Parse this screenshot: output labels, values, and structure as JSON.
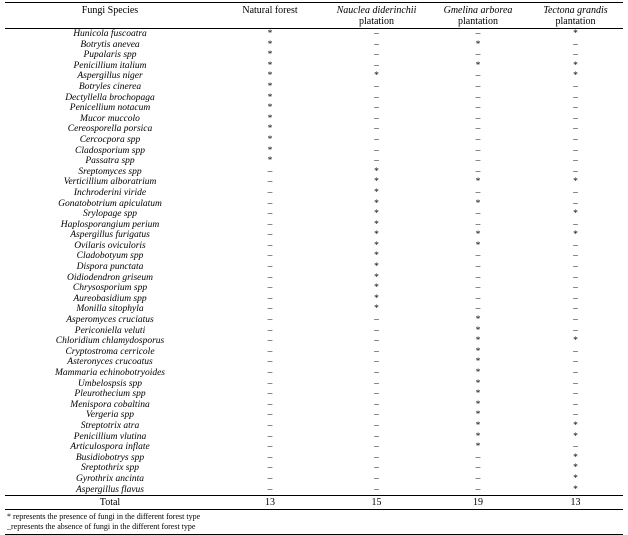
{
  "table": {
    "columns": [
      {
        "key": "fungi-species",
        "label": "Fungi Species",
        "italic": false,
        "sub": ""
      },
      {
        "key": "natural-forest",
        "label": "Natural forest",
        "italic": false,
        "sub": ""
      },
      {
        "key": "nauclea",
        "label": "Nauclea diderinchii",
        "italic": true,
        "sub": "platation"
      },
      {
        "key": "gmelina",
        "label": "Gmelina arborea",
        "italic": true,
        "sub": "plantation"
      },
      {
        "key": "tectona",
        "label": "Tectona grandis",
        "italic": true,
        "sub": "plantation"
      }
    ],
    "presence_symbol": "*",
    "absence_symbol": "–",
    "rows": [
      {
        "species": "Hunicola fuscoatra",
        "values": [
          "*",
          "–",
          "–",
          "*"
        ]
      },
      {
        "species": "Botrytis anevea",
        "values": [
          "*",
          "–",
          "*",
          "–"
        ]
      },
      {
        "species": "Pupalaris spp",
        "values": [
          "*",
          "–",
          "–",
          "–"
        ]
      },
      {
        "species": "Penicillium italium",
        "values": [
          "*",
          "–",
          "*",
          "*"
        ]
      },
      {
        "species": "Aspergillus niger",
        "values": [
          "*",
          "*",
          "–",
          "*"
        ]
      },
      {
        "species": "Botryles cinerea",
        "values": [
          "*",
          "–",
          "–",
          "–"
        ]
      },
      {
        "species": "Dectyllella brochopaga",
        "values": [
          "*",
          "–",
          "–",
          "–"
        ]
      },
      {
        "species": "Penicellium notacum",
        "values": [
          "*",
          "–",
          "–",
          "–"
        ]
      },
      {
        "species": "Mucor muccolo",
        "values": [
          "*",
          "–",
          "–",
          "–"
        ]
      },
      {
        "species": "Cereosporella porsica",
        "values": [
          "*",
          "–",
          "–",
          "–"
        ]
      },
      {
        "species": "Cercocpora spp",
        "values": [
          "*",
          "–",
          "–",
          "–"
        ]
      },
      {
        "species": "Cladosporium spp",
        "values": [
          "*",
          "–",
          "–",
          "–"
        ]
      },
      {
        "species": "Passatra spp",
        "values": [
          "*",
          "–",
          "–",
          "–"
        ]
      },
      {
        "species": "Sreptomyces spp",
        "values": [
          "–",
          "*",
          "–",
          "–"
        ]
      },
      {
        "species": "Verticillium alboratrium",
        "values": [
          "–",
          "*",
          "*",
          "*"
        ]
      },
      {
        "species": "Inchroderini viride",
        "values": [
          "–",
          "*",
          "–",
          "–"
        ]
      },
      {
        "species": "Gonatobotrium apiculatum",
        "values": [
          "–",
          "*",
          "*",
          "–"
        ]
      },
      {
        "species": "Srylopage spp",
        "values": [
          "–",
          "*",
          "–",
          "*"
        ]
      },
      {
        "species": "Haplosporangium perium",
        "values": [
          "–",
          "*",
          "–",
          "–"
        ]
      },
      {
        "species": "Aspergillus furigatus",
        "values": [
          "–",
          "*",
          "*",
          "*"
        ]
      },
      {
        "species": "Ovilaris oviculoris",
        "values": [
          "–",
          "*",
          "*",
          "–"
        ]
      },
      {
        "species": "Cladobotyum spp",
        "values": [
          "–",
          "*",
          "–",
          "–"
        ]
      },
      {
        "species": "Dispora punctata",
        "values": [
          "–",
          "*",
          "–",
          "–"
        ]
      },
      {
        "species": "Oidiodendron griseum",
        "values": [
          "–",
          "*",
          "–",
          "–"
        ]
      },
      {
        "species": "Chrysosporium spp",
        "values": [
          "–",
          "*",
          "–",
          "–"
        ]
      },
      {
        "species": "Aureobasidium spp",
        "values": [
          "–",
          "*",
          "–",
          "–"
        ]
      },
      {
        "species": "Monilla sitophyla",
        "values": [
          "–",
          "*",
          "–",
          "–"
        ]
      },
      {
        "species": "Asperomyces cruciatus",
        "values": [
          "–",
          "–",
          "*",
          "–"
        ]
      },
      {
        "species": "Periconiella veluti",
        "values": [
          "–",
          "–",
          "*",
          "–"
        ]
      },
      {
        "species": "Chloridium chlamydosporus",
        "values": [
          "–",
          "–",
          "*",
          "*"
        ]
      },
      {
        "species": "Cryptostroma cerricole",
        "values": [
          "–",
          "–",
          "*",
          "–"
        ]
      },
      {
        "species": "Asteronyces crucoatus",
        "values": [
          "–",
          "–",
          "*",
          "–"
        ]
      },
      {
        "species": "Mammaria echinobotryoides",
        "values": [
          "–",
          "–",
          "*",
          "–"
        ]
      },
      {
        "species": "Umbelospsis spp",
        "values": [
          "–",
          "–",
          "*",
          "–"
        ]
      },
      {
        "species": "Pleurothecium spp",
        "values": [
          "–",
          "–",
          "*",
          "–"
        ]
      },
      {
        "species": "Menispora cobaltina",
        "values": [
          "–",
          "–",
          "*",
          "–"
        ]
      },
      {
        "species": "Vergeria spp",
        "values": [
          "–",
          "–",
          "*",
          "–"
        ]
      },
      {
        "species": "Streptotrix atra",
        "values": [
          "–",
          "–",
          "*",
          "*"
        ]
      },
      {
        "species": "Penicillium vlutina",
        "values": [
          "–",
          "–",
          "*",
          "*"
        ]
      },
      {
        "species": "Articulospora inflate",
        "values": [
          "–",
          "–",
          "*",
          "–"
        ]
      },
      {
        "species": "Busidiobotrys spp",
        "values": [
          "–",
          "–",
          "–",
          "*"
        ]
      },
      {
        "species": "Sreptothrix spp",
        "values": [
          "–",
          "–",
          "–",
          "*"
        ]
      },
      {
        "species": "Gyrothrix ancinta",
        "values": [
          "–",
          "–",
          "–",
          "*"
        ]
      },
      {
        "species": "Aspergillus flavus",
        "values": [
          "–",
          "–",
          "–",
          "*"
        ]
      }
    ],
    "total": {
      "label": "Total",
      "values": [
        "13",
        "15",
        "19",
        "13"
      ]
    }
  },
  "footnotes": [
    "* represents the presence of fungi in the different forest type",
    "_represents the absence of fungi in the different forest type"
  ]
}
